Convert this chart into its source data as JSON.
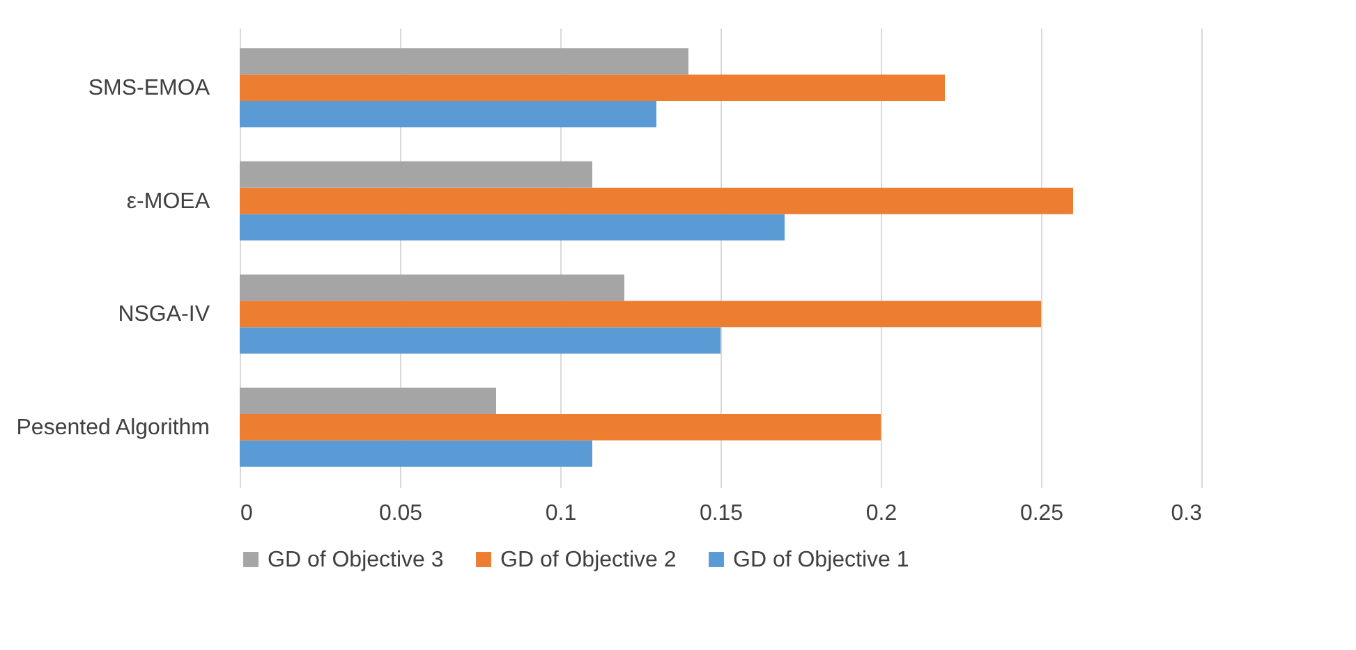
{
  "chart_data": {
    "type": "bar",
    "orientation": "horizontal",
    "categories": [
      "SMS-EMOA",
      "ε-MOEA",
      "NSGA-IV",
      "Pesented Algorithm"
    ],
    "series": [
      {
        "name": "GD of Objective 1",
        "color": "#5b9bd5",
        "values": [
          0.13,
          0.17,
          0.15,
          0.11
        ]
      },
      {
        "name": "GD of Objective 2",
        "color": "#ed7d31",
        "values": [
          0.22,
          0.26,
          0.25,
          0.2
        ]
      },
      {
        "name": "GD of Objective 3",
        "color": "#a5a5a5",
        "values": [
          0.14,
          0.11,
          0.12,
          0.08
        ]
      }
    ],
    "xlim": [
      0,
      0.3
    ],
    "xticks": [
      0,
      0.05,
      0.1,
      0.15,
      0.2,
      0.25,
      0.3
    ],
    "grid": "x",
    "legend": "bottom"
  }
}
